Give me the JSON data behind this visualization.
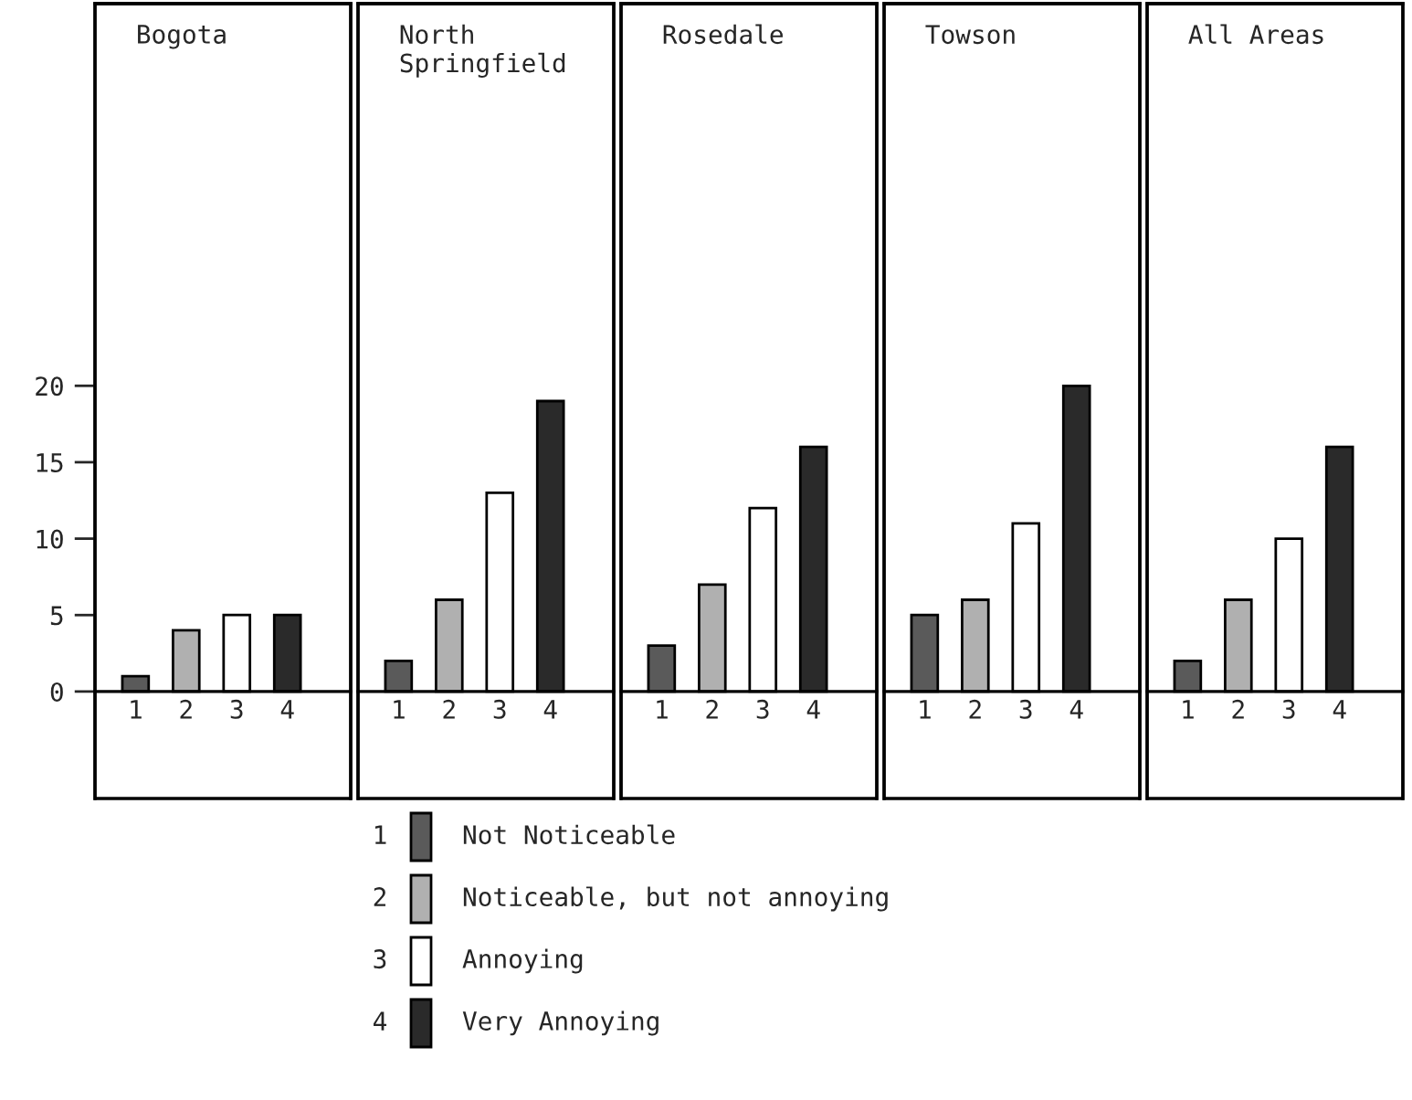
{
  "chart_data": [
    {
      "type": "bar",
      "title": "Bogota",
      "categories": [
        "1",
        "2",
        "3",
        "4"
      ],
      "ylim": [
        -7,
        45
      ],
      "yticks": [
        0,
        5,
        10,
        15,
        20
      ],
      "legend": "bottom",
      "series": [
        {
          "name": "Not Noticeable",
          "color": "#5a5a5a",
          "values": [
            1,
            null,
            null,
            null
          ]
        },
        {
          "name": "Noticeable, but not annoying",
          "color": "#b0b0b0",
          "values": [
            null,
            4,
            null,
            null
          ]
        },
        {
          "name": "Annoying",
          "color": "#ffffff",
          "values": [
            null,
            null,
            5,
            null
          ]
        },
        {
          "name": "Very Annoying",
          "color": "#2a2a2a",
          "values": [
            null,
            null,
            null,
            5
          ]
        }
      ]
    },
    {
      "type": "bar",
      "title": "North\nSpringfield",
      "categories": [
        "1",
        "2",
        "3",
        "4"
      ],
      "ylim": [
        -7,
        45
      ],
      "yticks": [
        0,
        5,
        10,
        15,
        20
      ],
      "tick_labels": "x",
      "series": [
        {
          "color": "#5a5a5a",
          "values": [
            2,
            null,
            null,
            null
          ]
        },
        {
          "color": "#b0b0b0",
          "values": [
            null,
            6,
            null,
            null
          ]
        },
        {
          "color": "#ffffff",
          "values": [
            null,
            null,
            13,
            null
          ]
        },
        {
          "color": "#2a2a2a",
          "values": [
            null,
            null,
            null,
            19
          ]
        }
      ]
    },
    {
      "type": "bar",
      "title": "Rosedale",
      "categories": [
        "1",
        "2",
        "3",
        "4"
      ],
      "ylim": [
        -7,
        45
      ],
      "yticks": [
        0,
        5,
        10,
        15,
        20
      ],
      "tick_labels": "x",
      "series": [
        {
          "color": "#5a5a5a",
          "values": [
            3,
            null,
            null,
            null
          ]
        },
        {
          "color": "#b0b0b0",
          "values": [
            null,
            7,
            null,
            null
          ]
        },
        {
          "color": "#ffffff",
          "values": [
            null,
            null,
            12,
            null
          ]
        },
        {
          "color": "#2a2a2a",
          "values": [
            null,
            null,
            null,
            16
          ]
        }
      ]
    },
    {
      "type": "bar",
      "title": "Towson",
      "categories": [
        "1",
        "2",
        "3",
        "4"
      ],
      "ylim": [
        -7,
        45
      ],
      "yticks": [
        0,
        5,
        10,
        15,
        20
      ],
      "tick_labels": "x",
      "series": [
        {
          "color": "#5a5a5a",
          "values": [
            5,
            null,
            null,
            null
          ]
        },
        {
          "color": "#b0b0b0",
          "values": [
            null,
            6,
            null,
            null
          ]
        },
        {
          "color": "#ffffff",
          "values": [
            null,
            null,
            11,
            null
          ]
        },
        {
          "color": "#2a2a2a",
          "values": [
            null,
            null,
            null,
            20
          ]
        }
      ]
    },
    {
      "type": "bar",
      "title": "All Areas",
      "categories": [
        "1",
        "2",
        "3",
        "4"
      ],
      "ylim": [
        -7,
        45
      ],
      "yticks": [
        0,
        5,
        10,
        15,
        20
      ],
      "tick_labels": "x",
      "series": [
        {
          "color": "#5a5a5a",
          "values": [
            2,
            null,
            null,
            null
          ]
        },
        {
          "color": "#b0b0b0",
          "values": [
            null,
            6,
            null,
            null
          ]
        },
        {
          "color": "#ffffff",
          "values": [
            null,
            null,
            10,
            null
          ]
        },
        {
          "color": "#2a2a2a",
          "values": [
            null,
            null,
            null,
            16
          ]
        }
      ]
    }
  ]
}
